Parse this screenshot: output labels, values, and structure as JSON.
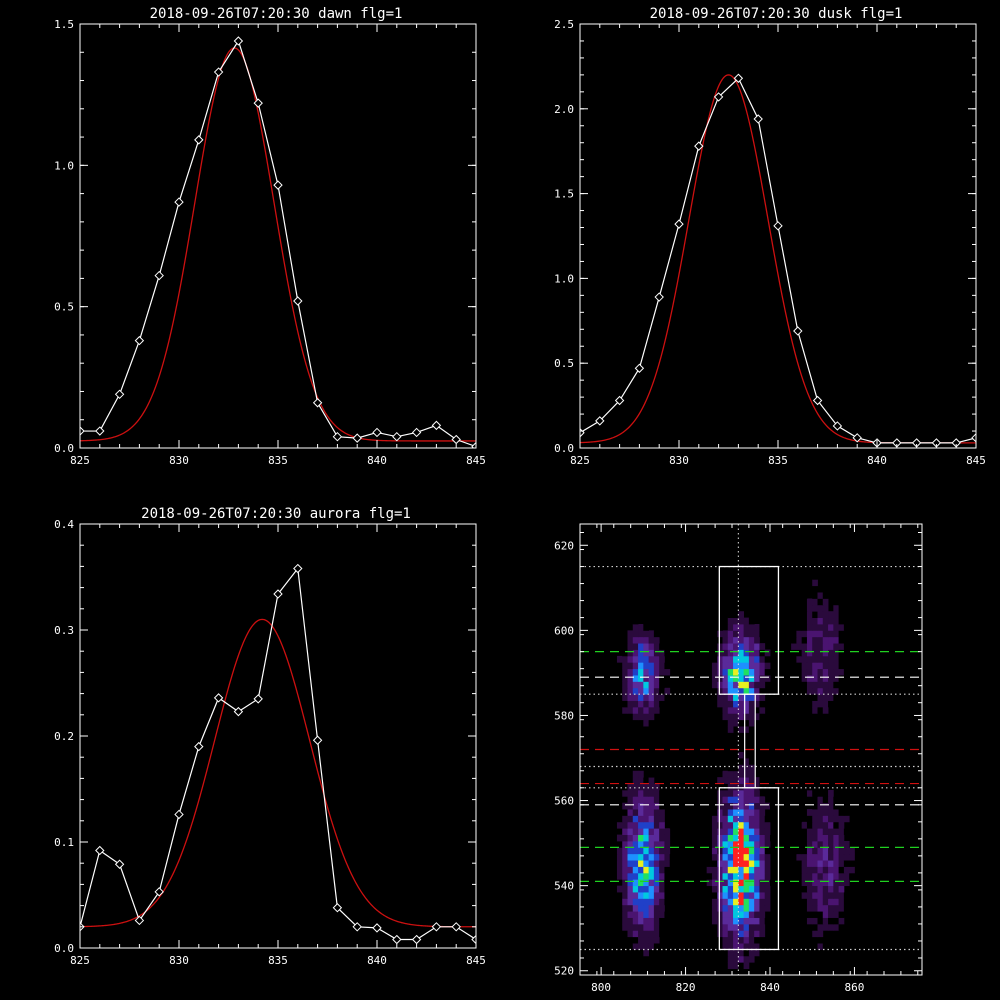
{
  "chart_data": [
    {
      "type": "line",
      "title": "2018-09-26T07:20:30 dawn flg=1",
      "xlim": [
        825,
        845
      ],
      "ylim": [
        0,
        1.5
      ],
      "xticks": [
        "825",
        "830",
        "835",
        "840",
        "845"
      ],
      "yticks": [
        "0.0",
        "0.5",
        "1.0",
        "1.5"
      ],
      "series": [
        {
          "style": "data",
          "color": "#ffffff",
          "x": [
            825,
            826,
            827,
            828,
            829,
            830,
            831,
            832,
            833,
            834,
            835,
            836,
            837,
            838,
            839,
            840,
            841,
            842,
            843,
            844,
            845
          ],
          "y": [
            0.06,
            0.06,
            0.19,
            0.38,
            0.61,
            0.87,
            1.09,
            1.33,
            1.44,
            1.22,
            0.93,
            0.52,
            0.16,
            0.04,
            0.035,
            0.055,
            0.04,
            0.055,
            0.08,
            0.03,
            0.005
          ]
        },
        {
          "style": "fit",
          "color": "#cc1010",
          "model": "gaussian",
          "amplitude": 1.39,
          "center": 832.8,
          "sigma": 2.0,
          "baseline": 0.025
        }
      ]
    },
    {
      "type": "line",
      "title": "2018-09-26T07:20:30 dusk flg=1",
      "xlim": [
        825,
        845
      ],
      "ylim": [
        0,
        2.5
      ],
      "xticks": [
        "825",
        "830",
        "835",
        "840",
        "845"
      ],
      "yticks": [
        "0.0",
        "0.5",
        "1.0",
        "1.5",
        "2.0",
        "2.5"
      ],
      "series": [
        {
          "style": "data",
          "color": "#ffffff",
          "x": [
            825,
            826,
            827,
            828,
            829,
            830,
            831,
            832,
            833,
            834,
            835,
            836,
            837,
            838,
            839,
            840,
            841,
            842,
            843,
            844,
            845
          ],
          "y": [
            0.09,
            0.16,
            0.28,
            0.47,
            0.89,
            1.32,
            1.78,
            2.07,
            2.18,
            1.94,
            1.31,
            0.69,
            0.28,
            0.13,
            0.06,
            0.03,
            0.03,
            0.03,
            0.03,
            0.03,
            0.06
          ]
        },
        {
          "style": "fit",
          "color": "#cc1010",
          "model": "gaussian",
          "amplitude": 2.17,
          "center": 832.5,
          "sigma": 2.0,
          "baseline": 0.03
        }
      ]
    },
    {
      "type": "line",
      "title": "2018-09-26T07:20:30 aurora flg=1",
      "xlim": [
        825,
        845
      ],
      "ylim": [
        0,
        0.4
      ],
      "xticks": [
        "825",
        "830",
        "835",
        "840",
        "845"
      ],
      "yticks": [
        "0.0",
        "0.1",
        "0.2",
        "0.3",
        "0.4"
      ],
      "series": [
        {
          "style": "data",
          "color": "#ffffff",
          "x": [
            825,
            826,
            827,
            828,
            829,
            830,
            831,
            832,
            833,
            834,
            835,
            836,
            837,
            838,
            839,
            840,
            841,
            842,
            843,
            844,
            845
          ],
          "y": [
            0.02,
            0.092,
            0.079,
            0.026,
            0.053,
            0.126,
            0.19,
            0.236,
            0.223,
            0.235,
            0.334,
            0.358,
            0.196,
            0.038,
            0.02,
            0.019,
            0.008,
            0.008,
            0.02,
            0.02,
            0.008
          ]
        },
        {
          "style": "fit",
          "color": "#cc1010",
          "model": "gaussian",
          "amplitude": 0.29,
          "center": 834.2,
          "sigma": 2.4,
          "baseline": 0.02
        }
      ]
    },
    {
      "type": "heatmap",
      "title": "",
      "xlim": [
        795,
        876
      ],
      "ylim": [
        519,
        625
      ],
      "xticks": [
        "800",
        "820",
        "840",
        "860"
      ],
      "yticks": [
        "520",
        "540",
        "560",
        "580",
        "600",
        "620"
      ],
      "colormap": [
        "#000000",
        "#2a0a3c",
        "#4a1470",
        "#5a2a9a",
        "#2040c8",
        "#1e90ff",
        "#00c8e0",
        "#20e060",
        "#e8f020",
        "#ff2020"
      ],
      "blobs": [
        {
          "x": 810,
          "y": 590,
          "sx": 2.6,
          "sy": 6,
          "peak": 0.55
        },
        {
          "x": 810,
          "y": 545,
          "sx": 2.8,
          "sy": 10,
          "peak": 0.72
        },
        {
          "x": 833,
          "y": 590,
          "sx": 3.0,
          "sy": 6,
          "peak": 0.78
        },
        {
          "x": 833,
          "y": 545,
          "sx": 3.2,
          "sy": 11,
          "peak": 1.0
        },
        {
          "x": 852,
          "y": 595,
          "sx": 3.5,
          "sy": 9,
          "peak": 0.24
        },
        {
          "x": 853,
          "y": 545,
          "sx": 3.5,
          "sy": 11,
          "peak": 0.26
        }
      ],
      "vertical_line_x": 832.5,
      "boxes": [
        {
          "x0": 828,
          "x1": 842,
          "y0": 585,
          "y1": 615
        },
        {
          "x0": 828,
          "x1": 842,
          "y0": 525,
          "y1": 563
        }
      ],
      "slit_bar": {
        "x0": 834,
        "x1": 836.5,
        "y0": 563,
        "y1": 585
      },
      "hlines": [
        {
          "y": 615,
          "color": "#cfcfcf",
          "style": "dotted"
        },
        {
          "y": 595,
          "color": "#20d020",
          "style": "dashed"
        },
        {
          "y": 589,
          "color": "#ffffff",
          "style": "dashed"
        },
        {
          "y": 585,
          "color": "#cfcfcf",
          "style": "dotted"
        },
        {
          "y": 572,
          "color": "#d01010",
          "style": "dashed"
        },
        {
          "y": 568,
          "color": "#cfcfcf",
          "style": "dotted"
        },
        {
          "y": 564,
          "color": "#d01010",
          "style": "dashed"
        },
        {
          "y": 563,
          "color": "#cfcfcf",
          "style": "dotted"
        },
        {
          "y": 559,
          "color": "#ffffff",
          "style": "dashed"
        },
        {
          "y": 549,
          "color": "#20d020",
          "style": "dashed"
        },
        {
          "y": 541,
          "color": "#20d020",
          "style": "dashed"
        },
        {
          "y": 525,
          "color": "#cfcfcf",
          "style": "dotted"
        }
      ]
    }
  ]
}
